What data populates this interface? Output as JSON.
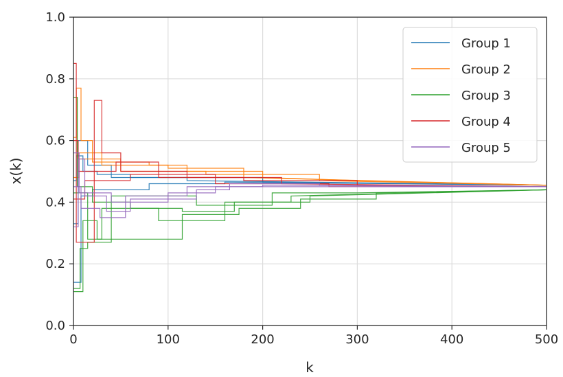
{
  "chart_data": {
    "type": "line",
    "title": "",
    "xlabel": "k",
    "ylabel": "x(k)",
    "xlim": [
      0,
      500
    ],
    "ylim": [
      0.0,
      1.0
    ],
    "xticks": [
      0,
      100,
      200,
      300,
      400,
      500
    ],
    "yticks": [
      0.0,
      0.2,
      0.4,
      0.6,
      0.8,
      1.0
    ],
    "xtick_labels": [
      "0",
      "100",
      "200",
      "300",
      "400",
      "500"
    ],
    "ytick_labels": [
      "0.0",
      "0.2",
      "0.4",
      "0.6",
      "0.8",
      "1.0"
    ],
    "grid": true,
    "legend_position": "upper right",
    "series": [
      {
        "name": "Group 1",
        "color": "#1f77b4",
        "lines": [
          [
            [
              0,
              0.47
            ],
            [
              3,
              0.47
            ],
            [
              3,
              0.55
            ],
            [
              10,
              0.55
            ],
            [
              10,
              0.5
            ],
            [
              25,
              0.5
            ],
            [
              25,
              0.49
            ],
            [
              60,
              0.49
            ],
            [
              60,
              0.48
            ],
            [
              200,
              0.48
            ],
            [
              200,
              0.465
            ],
            [
              500,
              0.455
            ]
          ],
          [
            [
              0,
              0.14
            ],
            [
              8,
              0.14
            ],
            [
              8,
              0.42
            ],
            [
              20,
              0.42
            ],
            [
              20,
              0.44
            ],
            [
              80,
              0.44
            ],
            [
              80,
              0.46
            ],
            [
              160,
              0.46
            ],
            [
              160,
              0.465
            ],
            [
              500,
              0.455
            ]
          ],
          [
            [
              0,
              0.33
            ],
            [
              5,
              0.33
            ],
            [
              5,
              0.6
            ],
            [
              15,
              0.6
            ],
            [
              15,
              0.52
            ],
            [
              40,
              0.52
            ],
            [
              40,
              0.48
            ],
            [
              120,
              0.48
            ],
            [
              120,
              0.47
            ],
            [
              500,
              0.455
            ]
          ]
        ]
      },
      {
        "name": "Group 2",
        "color": "#ff7f0e",
        "lines": [
          [
            [
              0,
              0.61
            ],
            [
              3,
              0.61
            ],
            [
              3,
              0.77
            ],
            [
              8,
              0.77
            ],
            [
              8,
              0.6
            ],
            [
              20,
              0.6
            ],
            [
              20,
              0.53
            ],
            [
              80,
              0.53
            ],
            [
              80,
              0.52
            ],
            [
              120,
              0.52
            ],
            [
              120,
              0.5
            ],
            [
              200,
              0.5
            ],
            [
              200,
              0.48
            ],
            [
              300,
              0.47
            ],
            [
              500,
              0.455
            ]
          ],
          [
            [
              0,
              0.74
            ],
            [
              4,
              0.74
            ],
            [
              4,
              0.56
            ],
            [
              30,
              0.56
            ],
            [
              30,
              0.52
            ],
            [
              100,
              0.52
            ],
            [
              100,
              0.51
            ],
            [
              180,
              0.51
            ],
            [
              180,
              0.48
            ],
            [
              500,
              0.455
            ]
          ],
          [
            [
              0,
              0.48
            ],
            [
              6,
              0.48
            ],
            [
              6,
              0.54
            ],
            [
              50,
              0.54
            ],
            [
              50,
              0.5
            ],
            [
              140,
              0.5
            ],
            [
              140,
              0.49
            ],
            [
              260,
              0.49
            ],
            [
              260,
              0.47
            ],
            [
              500,
              0.455
            ]
          ]
        ]
      },
      {
        "name": "Group 3",
        "color": "#2ca02c",
        "lines": [
          [
            [
              0,
              0.11
            ],
            [
              10,
              0.11
            ],
            [
              10,
              0.34
            ],
            [
              25,
              0.34
            ],
            [
              25,
              0.28
            ],
            [
              115,
              0.28
            ],
            [
              115,
              0.36
            ],
            [
              175,
              0.36
            ],
            [
              175,
              0.38
            ],
            [
              240,
              0.38
            ],
            [
              240,
              0.41
            ],
            [
              320,
              0.41
            ],
            [
              320,
              0.43
            ],
            [
              500,
              0.44
            ]
          ],
          [
            [
              0,
              0.12
            ],
            [
              7,
              0.12
            ],
            [
              7,
              0.25
            ],
            [
              15,
              0.25
            ],
            [
              15,
              0.27
            ],
            [
              40,
              0.27
            ],
            [
              40,
              0.42
            ],
            [
              130,
              0.42
            ],
            [
              130,
              0.39
            ],
            [
              210,
              0.39
            ],
            [
              210,
              0.43
            ],
            [
              300,
              0.43
            ],
            [
              500,
              0.44
            ]
          ],
          [
            [
              0,
              0.74
            ],
            [
              4,
              0.74
            ],
            [
              4,
              0.45
            ],
            [
              20,
              0.45
            ],
            [
              20,
              0.4
            ],
            [
              60,
              0.4
            ],
            [
              60,
              0.38
            ],
            [
              115,
              0.38
            ],
            [
              115,
              0.37
            ],
            [
              170,
              0.37
            ],
            [
              170,
              0.4
            ],
            [
              230,
              0.4
            ],
            [
              230,
              0.42
            ],
            [
              360,
              0.43
            ],
            [
              500,
              0.44
            ]
          ],
          [
            [
              0,
              0.43
            ],
            [
              15,
              0.43
            ],
            [
              15,
              0.28
            ],
            [
              30,
              0.28
            ],
            [
              30,
              0.38
            ],
            [
              90,
              0.38
            ],
            [
              90,
              0.34
            ],
            [
              160,
              0.34
            ],
            [
              160,
              0.4
            ],
            [
              250,
              0.4
            ],
            [
              250,
              0.42
            ],
            [
              500,
              0.44
            ]
          ]
        ]
      },
      {
        "name": "Group 4",
        "color": "#d62728",
        "lines": [
          [
            [
              0,
              0.85
            ],
            [
              3,
              0.85
            ],
            [
              3,
              0.27
            ],
            [
              22,
              0.27
            ],
            [
              22,
              0.73
            ],
            [
              30,
              0.73
            ],
            [
              30,
              0.56
            ],
            [
              50,
              0.56
            ],
            [
              50,
              0.5
            ],
            [
              120,
              0.5
            ],
            [
              120,
              0.48
            ],
            [
              220,
              0.48
            ],
            [
              220,
              0.46
            ],
            [
              500,
              0.45
            ]
          ],
          [
            [
              0,
              0.6
            ],
            [
              5,
              0.6
            ],
            [
              5,
              0.5
            ],
            [
              45,
              0.5
            ],
            [
              45,
              0.53
            ],
            [
              90,
              0.53
            ],
            [
              90,
              0.48
            ],
            [
              180,
              0.48
            ],
            [
              180,
              0.47
            ],
            [
              300,
              0.47
            ],
            [
              300,
              0.455
            ],
            [
              500,
              0.45
            ]
          ],
          [
            [
              0,
              0.41
            ],
            [
              12,
              0.41
            ],
            [
              12,
              0.47
            ],
            [
              60,
              0.47
            ],
            [
              60,
              0.49
            ],
            [
              150,
              0.49
            ],
            [
              150,
              0.46
            ],
            [
              270,
              0.46
            ],
            [
              270,
              0.45
            ],
            [
              500,
              0.45
            ]
          ]
        ]
      },
      {
        "name": "Group 5",
        "color": "#9467bd",
        "lines": [
          [
            [
              0,
              0.32
            ],
            [
              5,
              0.32
            ],
            [
              5,
              0.54
            ],
            [
              12,
              0.54
            ],
            [
              12,
              0.42
            ],
            [
              35,
              0.42
            ],
            [
              35,
              0.37
            ],
            [
              60,
              0.37
            ],
            [
              60,
              0.41
            ],
            [
              130,
              0.41
            ],
            [
              130,
              0.44
            ],
            [
              165,
              0.44
            ],
            [
              165,
              0.46
            ],
            [
              260,
              0.46
            ],
            [
              260,
              0.455
            ],
            [
              500,
              0.45
            ]
          ],
          [
            [
              0,
              0.45
            ],
            [
              8,
              0.45
            ],
            [
              8,
              0.38
            ],
            [
              28,
              0.38
            ],
            [
              28,
              0.35
            ],
            [
              55,
              0.35
            ],
            [
              55,
              0.42
            ],
            [
              120,
              0.42
            ],
            [
              120,
              0.45
            ],
            [
              200,
              0.45
            ],
            [
              200,
              0.455
            ],
            [
              500,
              0.45
            ]
          ],
          [
            [
              0,
              0.56
            ],
            [
              6,
              0.56
            ],
            [
              6,
              0.43
            ],
            [
              40,
              0.43
            ],
            [
              40,
              0.4
            ],
            [
              100,
              0.4
            ],
            [
              100,
              0.43
            ],
            [
              150,
              0.43
            ],
            [
              150,
              0.45
            ],
            [
              500,
              0.45
            ]
          ]
        ]
      }
    ]
  }
}
